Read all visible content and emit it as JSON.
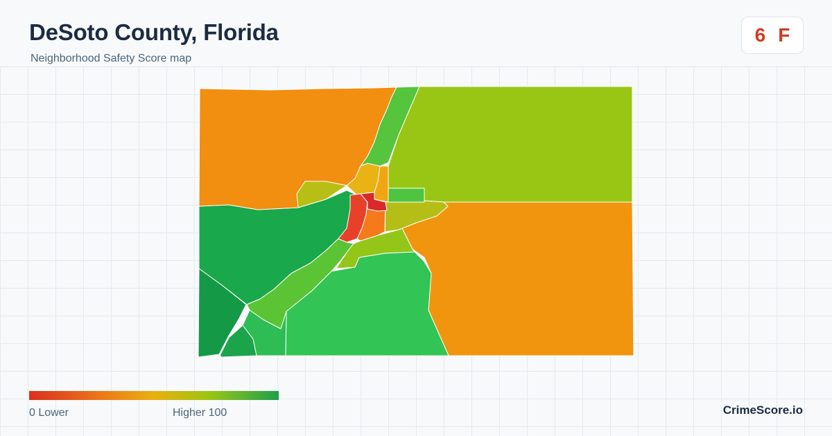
{
  "header": {
    "title": "DeSoto County, Florida",
    "subtitle": "Neighborhood Safety Score map"
  },
  "grade": {
    "score": "6",
    "letter": "F",
    "color": "#d23b1f"
  },
  "legend": {
    "low_label": "0  Lower",
    "high_label": "Higher  100",
    "scale_min": 0,
    "scale_max": 100,
    "colors": [
      "#d9301f",
      "#ee7a1a",
      "#e9b010",
      "#9cc514",
      "#1fa04a"
    ]
  },
  "brand": "CrimeScore.io",
  "map": {
    "regions": [
      {
        "name": "northwest",
        "color": "#f28e10"
      },
      {
        "name": "north-central-strip",
        "color": "#56c43c"
      },
      {
        "name": "northeast",
        "color": "#99c614"
      },
      {
        "name": "west-river-strip",
        "color": "#b8bf14"
      },
      {
        "name": "west",
        "color": "#19a84b"
      },
      {
        "name": "southwest-corner",
        "color": "#149a47"
      },
      {
        "name": "southwest-small",
        "color": "#1ca44a"
      },
      {
        "name": "south-coastal",
        "color": "#2ebd54"
      },
      {
        "name": "south-riverbank",
        "color": "#5bc434"
      },
      {
        "name": "south-central",
        "color": "#32c454"
      },
      {
        "name": "southeast",
        "color": "#f1950f"
      },
      {
        "name": "east-central-arm",
        "color": "#b5be17"
      },
      {
        "name": "central-south-band",
        "color": "#93c618"
      },
      {
        "name": "arcadia-north",
        "color": "#e8b313"
      },
      {
        "name": "arcadia-northeast",
        "color": "#f0a612"
      },
      {
        "name": "arcadia-west",
        "color": "#e8412a"
      },
      {
        "name": "arcadia-east",
        "color": "#f47a1c"
      },
      {
        "name": "arcadia-center",
        "color": "#d9292b"
      },
      {
        "name": "arcadia-green-block",
        "color": "#4fc440"
      }
    ]
  }
}
